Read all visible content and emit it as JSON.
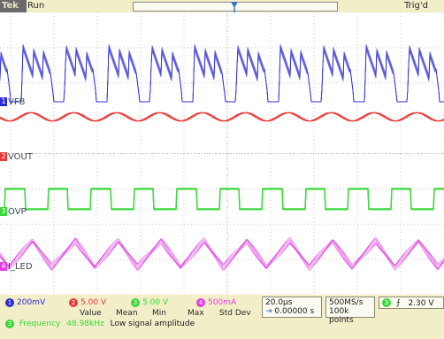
{
  "top_bar": {
    "brand": "Tek",
    "status": "Run",
    "trigger_state": "Trig'd"
  },
  "channels": [
    {
      "num": "1",
      "label": "VFB",
      "color": "#2b2bd6"
    },
    {
      "num": "2",
      "label": "VOUT",
      "color": "#e83a3a"
    },
    {
      "num": "3",
      "label": "OVP",
      "color": "#3ad83a"
    },
    {
      "num": "4",
      "label": "I_LED",
      "color": "#e040e0"
    }
  ],
  "scales": {
    "ch1": "200mV",
    "ch2": "5.00 V",
    "ch3": "5.00 V",
    "ch4": "500mA"
  },
  "timebase": {
    "per_div": "20.0µs",
    "delay": "0.00000 s",
    "sample_rate": "500MS/s",
    "record_length": "100k points"
  },
  "trigger": {
    "channel": "3",
    "slope_icon": "rising-edge-icon",
    "level": "2.30 V"
  },
  "measurements": {
    "headers": [
      "Value",
      "Mean",
      "Min",
      "Max",
      "Std Dev"
    ],
    "rows": [
      {
        "channel": "3",
        "name": "Frequency",
        "value": "48.98kHz",
        "note": "Low signal amplitude"
      }
    ]
  },
  "colors": {
    "bezel": "#f1eec8",
    "grid": "#c9c9c9",
    "ch1": "#2b2bd6",
    "ch2": "#e83a3a",
    "ch3": "#3ad83a",
    "ch4": "#e040e0"
  }
}
